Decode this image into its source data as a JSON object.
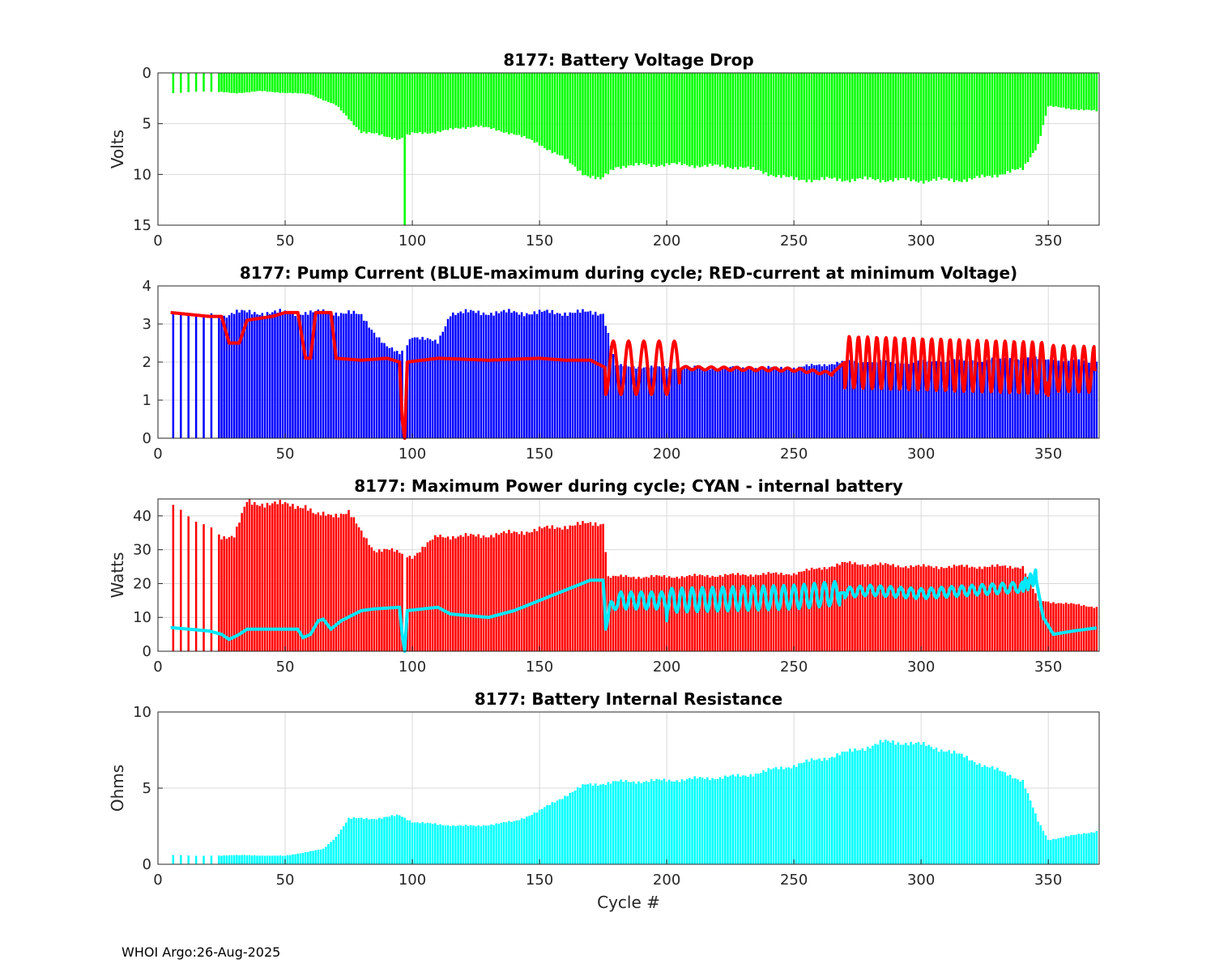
{
  "footer": "WHOI Argo:26-Aug-2025",
  "colors": {
    "green": "#00ff00",
    "blue": "#0000ff",
    "red": "#ff0000",
    "cyan": "#00ffff",
    "grid": "#d9d9d9",
    "axis": "#262626"
  },
  "chart_data": [
    {
      "id": "voltage",
      "type": "bar",
      "title": "8177: Battery Voltage Drop",
      "ylabel": "Volts",
      "xlabel": "",
      "xlim": [
        0,
        370
      ],
      "ylim": [
        0,
        15
      ],
      "y_reversed": true,
      "xticks": [
        0,
        50,
        100,
        150,
        200,
        250,
        300,
        350
      ],
      "yticks": [
        0,
        5,
        10,
        15
      ],
      "bar_color": "#00ff00",
      "bars_knots": [
        [
          5,
          2
        ],
        [
          20,
          1.8
        ],
        [
          30,
          2
        ],
        [
          40,
          1.8
        ],
        [
          60,
          2.1
        ],
        [
          70,
          3.2
        ],
        [
          80,
          5.8
        ],
        [
          95,
          6.5
        ],
        [
          100,
          6
        ],
        [
          110,
          5.8
        ],
        [
          125,
          5.2
        ],
        [
          140,
          6
        ],
        [
          150,
          7
        ],
        [
          160,
          8.5
        ],
        [
          168,
          10
        ],
        [
          174,
          10.6
        ],
        [
          180,
          9.2
        ],
        [
          200,
          9
        ],
        [
          230,
          9.3
        ],
        [
          250,
          10.5
        ],
        [
          280,
          10.5
        ],
        [
          300,
          10.6
        ],
        [
          320,
          10.5
        ],
        [
          340,
          9.5
        ],
        [
          346,
          7
        ],
        [
          350,
          3.3
        ],
        [
          370,
          3.8
        ]
      ],
      "bars_dips": [
        [
          97,
          15
        ]
      ],
      "lines": []
    },
    {
      "id": "pump",
      "type": "bar",
      "title": "8177: Pump Current (BLUE-maximum during cycle; RED-current at minimum Voltage)",
      "ylabel": "",
      "xlabel": "",
      "xlim": [
        0,
        370
      ],
      "ylim": [
        0,
        4
      ],
      "y_reversed": false,
      "xticks": [
        0,
        50,
        100,
        150,
        200,
        250,
        300,
        350
      ],
      "yticks": [
        0,
        1,
        2,
        3,
        4
      ],
      "bar_color": "#0000ff",
      "bars_knots": [
        [
          5,
          3.3
        ],
        [
          25,
          3.2
        ],
        [
          30,
          3.3
        ],
        [
          60,
          3.3
        ],
        [
          75,
          3.3
        ],
        [
          80,
          3.2
        ],
        [
          85,
          2.8
        ],
        [
          90,
          2.4
        ],
        [
          95,
          2.2
        ],
        [
          100,
          2.7
        ],
        [
          110,
          2.5
        ],
        [
          115,
          3.3
        ],
        [
          170,
          3.3
        ],
        [
          175,
          3.3
        ],
        [
          180,
          1.9
        ],
        [
          200,
          1.85
        ],
        [
          250,
          1.85
        ],
        [
          270,
          2
        ],
        [
          300,
          2
        ],
        [
          340,
          2.1
        ],
        [
          370,
          2
        ]
      ],
      "bars_dips": [
        [
          97,
          0
        ]
      ],
      "lines": [
        {
          "name": "current at minimum Voltage",
          "color": "#ff0000",
          "width": 4,
          "knots": [
            [
              5,
              3.3
            ],
            [
              20,
              3.2
            ],
            [
              25,
              3.2
            ],
            [
              28,
              2.5
            ],
            [
              32,
              2.5
            ],
            [
              35,
              3.1
            ],
            [
              45,
              3.2
            ],
            [
              50,
              3.3
            ],
            [
              55,
              3.3
            ],
            [
              58,
              2.1
            ],
            [
              60,
              2.1
            ],
            [
              62,
              3.3
            ],
            [
              68,
              3.3
            ],
            [
              70,
              2.1
            ],
            [
              80,
              2.05
            ],
            [
              90,
              2.1
            ],
            [
              95,
              2.0
            ],
            [
              96,
              0.5
            ],
            [
              97,
              0
            ],
            [
              98,
              2.0
            ],
            [
              110,
              2.1
            ],
            [
              130,
              2.05
            ],
            [
              150,
              2.1
            ],
            [
              160,
              2.05
            ],
            [
              170,
              2.05
            ],
            [
              176,
              1.85
            ],
            [
              200,
              1.85
            ],
            [
              250,
              1.8
            ],
            [
              265,
              1.7
            ],
            [
              270,
              2.0
            ],
            [
              370,
              1.8
            ]
          ],
          "osc": [
            [
              176,
              205,
              1.4,
              6
            ],
            [
              205,
              265,
              0.08,
              5
            ],
            [
              270,
              350,
              1.35,
              3.6
            ],
            [
              350,
              368,
              1.2,
              4
            ]
          ]
        }
      ]
    },
    {
      "id": "power",
      "type": "bar",
      "title": "8177: Maximum Power during cycle; CYAN - internal battery",
      "ylabel": "Watts",
      "xlabel": "",
      "xlim": [
        0,
        370
      ],
      "ylim": [
        0,
        45
      ],
      "y_reversed": false,
      "xticks": [
        0,
        50,
        100,
        150,
        200,
        250,
        300,
        350
      ],
      "yticks": [
        0,
        10,
        20,
        30,
        40
      ],
      "bar_color": "#ff0000",
      "bars_knots": [
        [
          5,
          43.5
        ],
        [
          25,
          34
        ],
        [
          30,
          34
        ],
        [
          35,
          44
        ],
        [
          58,
          43
        ],
        [
          62,
          40
        ],
        [
          75,
          41
        ],
        [
          80,
          35
        ],
        [
          85,
          30
        ],
        [
          90,
          30
        ],
        [
          100,
          28
        ],
        [
          110,
          34
        ],
        [
          125,
          34
        ],
        [
          140,
          35
        ],
        [
          160,
          37
        ],
        [
          175,
          38
        ],
        [
          177,
          22
        ],
        [
          200,
          22
        ],
        [
          250,
          23
        ],
        [
          270,
          26
        ],
        [
          300,
          25
        ],
        [
          340,
          25
        ],
        [
          346,
          15
        ],
        [
          370,
          13
        ]
      ],
      "bars_dips": [
        [
          97,
          0
        ]
      ],
      "lines": [
        {
          "name": "internal battery",
          "color": "#00e8ff",
          "width": 4,
          "knots": [
            [
              5,
              7
            ],
            [
              20,
              6
            ],
            [
              25,
              5
            ],
            [
              28,
              3.5
            ],
            [
              32,
              5
            ],
            [
              35,
              6.5
            ],
            [
              50,
              6.5
            ],
            [
              55,
              6.5
            ],
            [
              57,
              4
            ],
            [
              60,
              5
            ],
            [
              63,
              9
            ],
            [
              65,
              9.5
            ],
            [
              68,
              6.5
            ],
            [
              72,
              9
            ],
            [
              80,
              12
            ],
            [
              85,
              12.5
            ],
            [
              95,
              13
            ],
            [
              96,
              5
            ],
            [
              97,
              0
            ],
            [
              98,
              12
            ],
            [
              110,
              13
            ],
            [
              115,
              11
            ],
            [
              130,
              10
            ],
            [
              140,
              12
            ],
            [
              150,
              15
            ],
            [
              160,
              18
            ],
            [
              170,
              21
            ],
            [
              175,
              21
            ],
            [
              176,
              9
            ],
            [
              180,
              15
            ],
            [
              200,
              15
            ],
            [
              250,
              16
            ],
            [
              280,
              18
            ],
            [
              300,
              17
            ],
            [
              340,
              19
            ],
            [
              345,
              22
            ],
            [
              348,
              10
            ],
            [
              352,
              5
            ],
            [
              360,
              6
            ],
            [
              370,
              7
            ]
          ],
          "osc": [
            [
              176,
              200,
              5,
              4
            ],
            [
              200,
              268,
              7,
              4
            ],
            [
              270,
              340,
              3,
              4
            ],
            [
              340,
              345,
              4,
              2
            ]
          ]
        }
      ]
    },
    {
      "id": "resistance",
      "type": "bar",
      "title": "8177: Battery Internal Resistance",
      "ylabel": "Ohms",
      "xlabel": "Cycle #",
      "xlim": [
        0,
        370
      ],
      "ylim": [
        0,
        10
      ],
      "y_reversed": false,
      "xticks": [
        0,
        50,
        100,
        150,
        200,
        250,
        300,
        350
      ],
      "yticks": [
        0,
        5,
        10
      ],
      "bar_color": "#00ffff",
      "bars_knots": [
        [
          5,
          0.6
        ],
        [
          20,
          0.55
        ],
        [
          30,
          0.6
        ],
        [
          50,
          0.55
        ],
        [
          55,
          0.7
        ],
        [
          65,
          1
        ],
        [
          70,
          1.8
        ],
        [
          75,
          3
        ],
        [
          85,
          3
        ],
        [
          95,
          3.2
        ],
        [
          100,
          2.8
        ],
        [
          110,
          2.6
        ],
        [
          125,
          2.5
        ],
        [
          140,
          2.8
        ],
        [
          150,
          3.5
        ],
        [
          160,
          4.5
        ],
        [
          168,
          5.2
        ],
        [
          174,
          5.3
        ],
        [
          180,
          5.4
        ],
        [
          200,
          5.5
        ],
        [
          230,
          5.8
        ],
        [
          250,
          6.5
        ],
        [
          270,
          7.3
        ],
        [
          285,
          8
        ],
        [
          295,
          8
        ],
        [
          310,
          7.5
        ],
        [
          325,
          6.5
        ],
        [
          340,
          5.5
        ],
        [
          346,
          2.8
        ],
        [
          350,
          1.6
        ],
        [
          370,
          2.2
        ]
      ],
      "bars_dips": [],
      "lines": []
    }
  ]
}
